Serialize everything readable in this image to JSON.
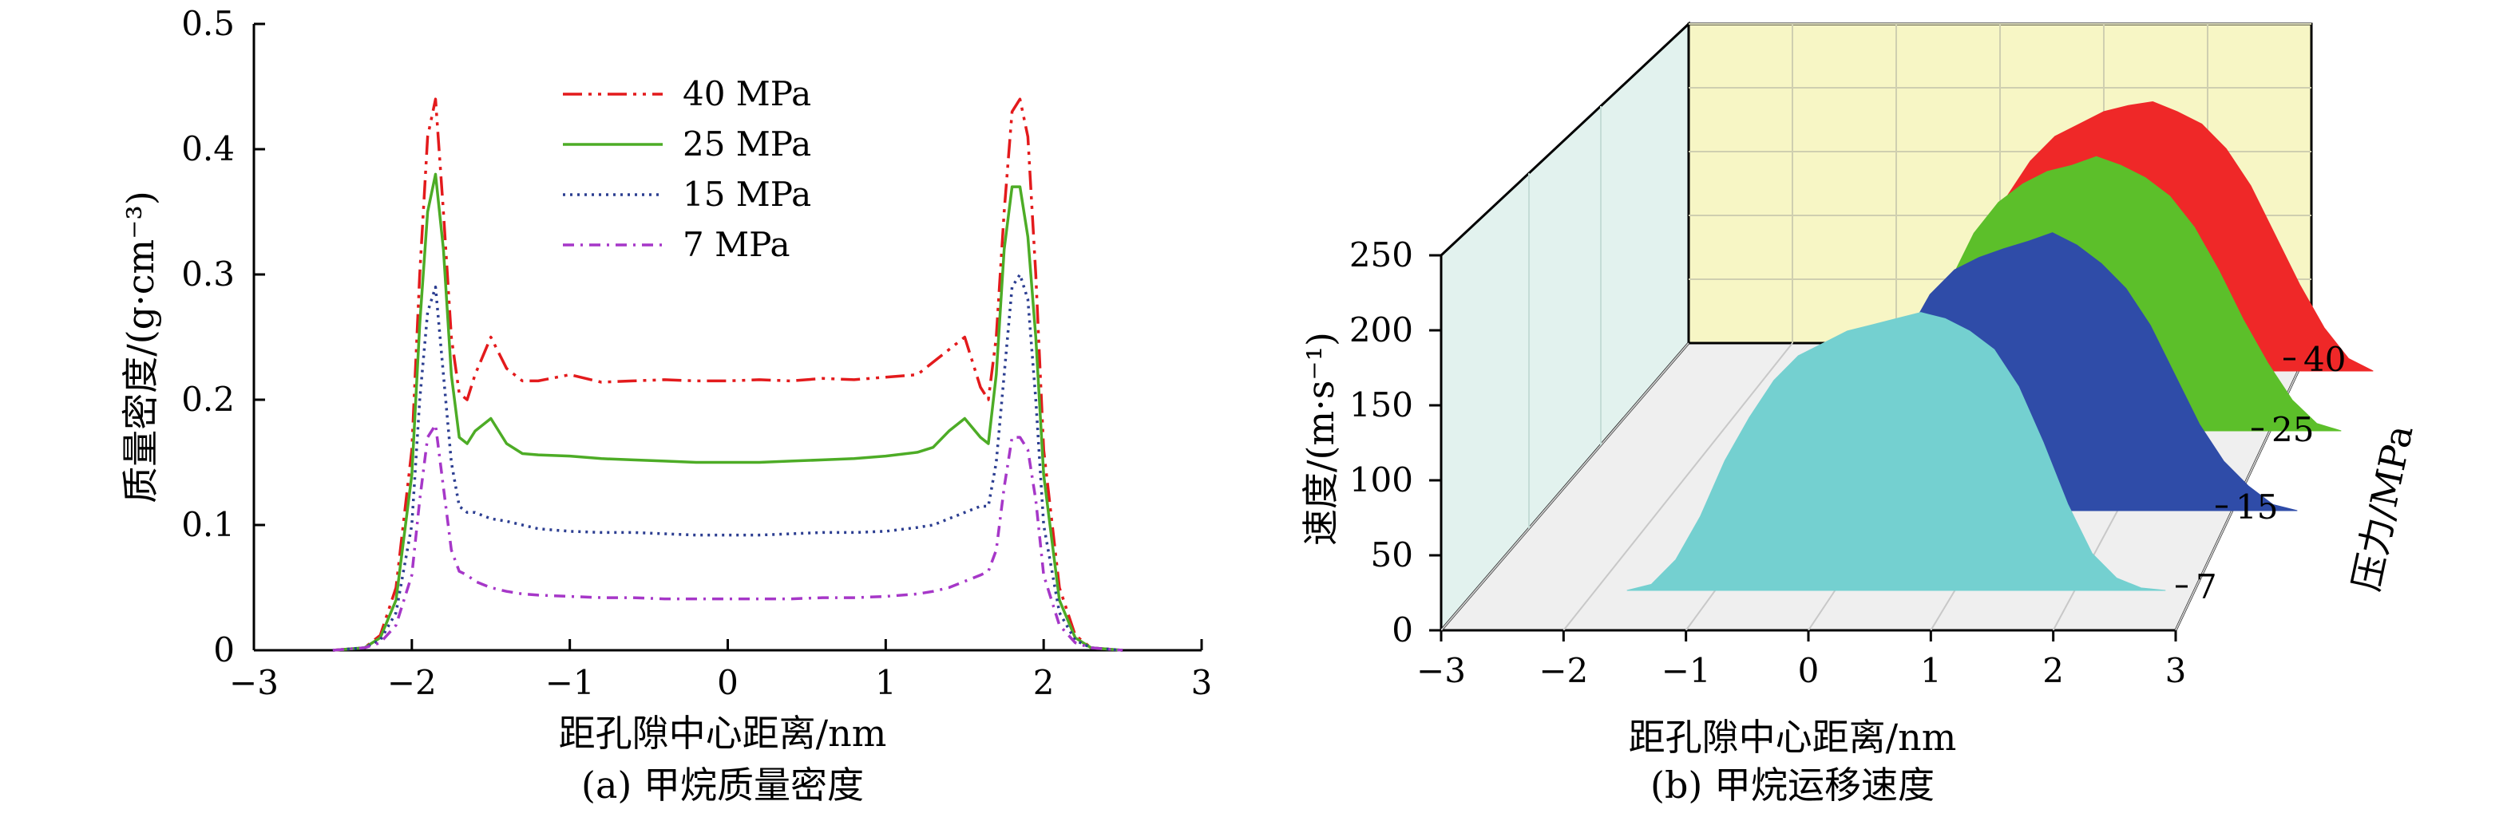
{
  "chart_data": [
    {
      "type": "line",
      "caption": "(a) 甲烷质量密度",
      "xlabel": "距孔隙中心距离/nm",
      "ylabel": "质量密度/(g·cm⁻³)",
      "xlim": [
        -3,
        3
      ],
      "ylim": [
        0,
        0.5
      ],
      "xticks": [
        -3,
        -2,
        -1,
        0,
        1,
        2,
        3
      ],
      "xtick_labels": [
        "−3",
        "−2",
        "−1",
        "0",
        "1",
        "2",
        "3"
      ],
      "yticks": [
        0,
        0.1,
        0.2,
        0.3,
        0.4,
        0.5
      ],
      "ytick_labels": [
        "0",
        "0.1",
        "0.2",
        "0.3",
        "0.4",
        "0.5"
      ],
      "grid": false,
      "legend_position": "top-center",
      "x": [
        -2.5,
        -2.3,
        -2.2,
        -2.1,
        -2.0,
        -1.95,
        -1.9,
        -1.85,
        -1.8,
        -1.75,
        -1.7,
        -1.65,
        -1.6,
        -1.5,
        -1.4,
        -1.3,
        -1.2,
        -1.0,
        -0.8,
        -0.6,
        -0.4,
        -0.2,
        0,
        0.2,
        0.4,
        0.6,
        0.8,
        1.0,
        1.2,
        1.3,
        1.4,
        1.5,
        1.6,
        1.65,
        1.7,
        1.75,
        1.8,
        1.85,
        1.9,
        1.95,
        2.0,
        2.1,
        2.2,
        2.3,
        2.5
      ],
      "series": [
        {
          "name": "40 MPa",
          "color": "#e31a1c",
          "dash": "24 8 4 8 4 8",
          "values": [
            0,
            0.002,
            0.012,
            0.05,
            0.16,
            0.3,
            0.41,
            0.44,
            0.35,
            0.25,
            0.205,
            0.2,
            0.22,
            0.25,
            0.225,
            0.215,
            0.215,
            0.22,
            0.214,
            0.215,
            0.216,
            0.215,
            0.215,
            0.216,
            0.215,
            0.217,
            0.216,
            0.218,
            0.22,
            0.23,
            0.24,
            0.25,
            0.21,
            0.2,
            0.25,
            0.35,
            0.43,
            0.44,
            0.41,
            0.3,
            0.16,
            0.05,
            0.012,
            0.002,
            0
          ]
        },
        {
          "name": "25 MPa",
          "color": "#4dac26",
          "dash": "",
          "values": [
            0,
            0.002,
            0.01,
            0.04,
            0.14,
            0.26,
            0.35,
            0.38,
            0.32,
            0.22,
            0.17,
            0.165,
            0.175,
            0.185,
            0.165,
            0.157,
            0.156,
            0.155,
            0.153,
            0.152,
            0.151,
            0.15,
            0.15,
            0.15,
            0.151,
            0.152,
            0.153,
            0.155,
            0.158,
            0.162,
            0.175,
            0.185,
            0.17,
            0.165,
            0.22,
            0.32,
            0.37,
            0.37,
            0.33,
            0.25,
            0.14,
            0.04,
            0.01,
            0.002,
            0
          ]
        },
        {
          "name": "15 MPa",
          "color": "#2c3e91",
          "dash": "3 6",
          "values": [
            0,
            0.002,
            0.008,
            0.03,
            0.1,
            0.2,
            0.27,
            0.29,
            0.22,
            0.15,
            0.115,
            0.11,
            0.11,
            0.105,
            0.103,
            0.1,
            0.097,
            0.095,
            0.094,
            0.094,
            0.093,
            0.092,
            0.092,
            0.092,
            0.093,
            0.094,
            0.094,
            0.095,
            0.098,
            0.1,
            0.105,
            0.11,
            0.115,
            0.115,
            0.15,
            0.22,
            0.29,
            0.3,
            0.28,
            0.2,
            0.1,
            0.03,
            0.008,
            0.002,
            0
          ]
        },
        {
          "name": "7 MPa",
          "color": "#a637c8",
          "dash": "14 8 3 8",
          "values": [
            0,
            0.002,
            0.006,
            0.02,
            0.06,
            0.12,
            0.17,
            0.18,
            0.13,
            0.08,
            0.063,
            0.06,
            0.055,
            0.05,
            0.047,
            0.045,
            0.044,
            0.043,
            0.042,
            0.042,
            0.041,
            0.041,
            0.041,
            0.041,
            0.041,
            0.042,
            0.042,
            0.043,
            0.045,
            0.047,
            0.05,
            0.055,
            0.06,
            0.063,
            0.08,
            0.13,
            0.17,
            0.17,
            0.16,
            0.12,
            0.06,
            0.02,
            0.006,
            0.002,
            0
          ]
        }
      ]
    },
    {
      "type": "area",
      "caption": "(b) 甲烷运移速度",
      "xlabel": "距孔隙中心距离/nm",
      "ylabel": "速度/(m·s⁻¹)",
      "zlabel": "压力/MPa",
      "xlim": [
        -3,
        3
      ],
      "ylim": [
        0,
        250
      ],
      "xticks": [
        -3,
        -2,
        -1,
        0,
        1,
        2,
        3
      ],
      "xtick_labels": [
        "−3",
        "−2",
        "−1",
        "0",
        "1",
        "2",
        "3"
      ],
      "yticks": [
        0,
        50,
        100,
        150,
        200,
        250
      ],
      "ytick_labels": [
        "0",
        "50",
        "100",
        "150",
        "200",
        "250"
      ],
      "zticks": [
        7,
        15,
        25,
        40
      ],
      "ztick_labels": [
        "7",
        "15",
        "25",
        "40"
      ],
      "grid": true,
      "colors": {
        "back_wall": "#f7f6c5",
        "side_wall": "#e2f2ee",
        "floor": "#efefef"
      },
      "x": [
        -2.2,
        -2.0,
        -1.8,
        -1.6,
        -1.4,
        -1.2,
        -1.0,
        -0.8,
        -0.6,
        -0.4,
        -0.2,
        0,
        0.2,
        0.4,
        0.6,
        0.8,
        1.0,
        1.2,
        1.4,
        1.6,
        1.8,
        2.0,
        2.2
      ],
      "series": [
        {
          "name": "40 MPa",
          "pressure": 40,
          "color": "#ef2828",
          "values": [
            0,
            2,
            5,
            12,
            30,
            60,
            100,
            140,
            170,
            190,
            200,
            210,
            215,
            218,
            210,
            200,
            180,
            150,
            110,
            70,
            35,
            10,
            0
          ]
        },
        {
          "name": "25 MPa",
          "pressure": 25,
          "color": "#5cbf2a",
          "values": [
            0,
            3,
            8,
            20,
            45,
            80,
            120,
            160,
            185,
            200,
            210,
            215,
            222,
            215,
            205,
            190,
            165,
            130,
            90,
            55,
            25,
            6,
            0
          ]
        },
        {
          "name": "15 MPa",
          "pressure": 15,
          "color": "#2f4ca8",
          "values": [
            0,
            5,
            12,
            30,
            60,
            100,
            140,
            175,
            195,
            205,
            212,
            218,
            225,
            215,
            200,
            180,
            150,
            110,
            70,
            40,
            20,
            5,
            0
          ]
        },
        {
          "name": "7 MPa",
          "pressure": 7,
          "color": "#74d0d0",
          "values": [
            0,
            5,
            25,
            60,
            105,
            140,
            170,
            190,
            200,
            210,
            215,
            220,
            225,
            220,
            210,
            195,
            165,
            120,
            70,
            30,
            10,
            2,
            0
          ]
        }
      ]
    }
  ]
}
